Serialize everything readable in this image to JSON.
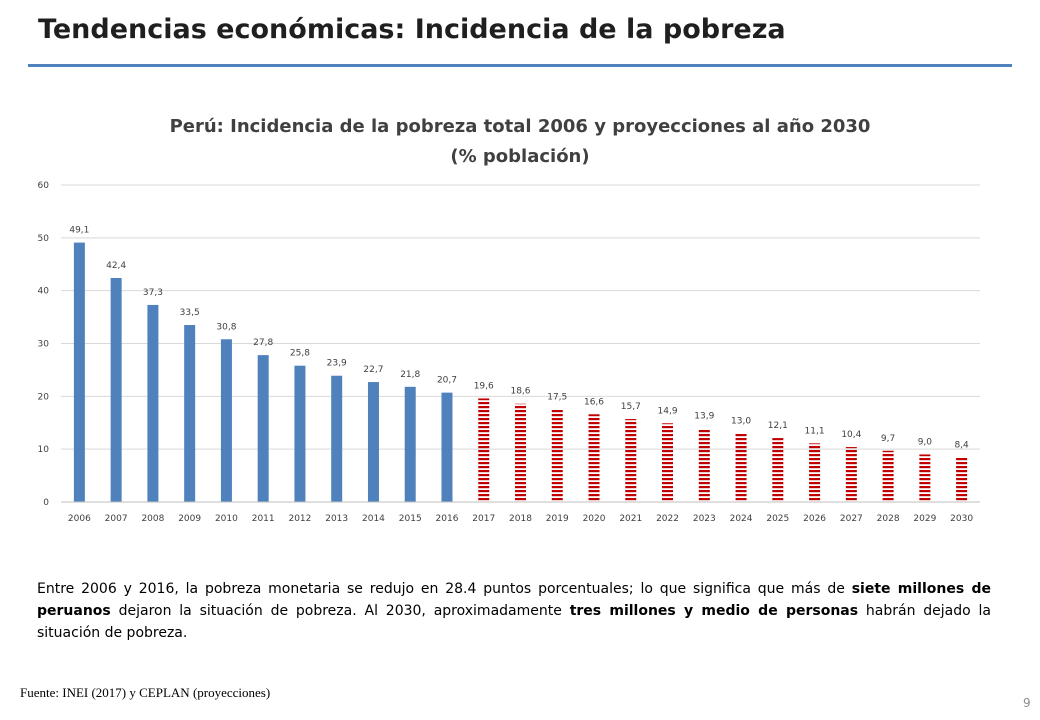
{
  "slide": {
    "title": "Tendencias económicas: Incidencia de la pobreza",
    "page_number": "9"
  },
  "summary": {
    "part1": "Entre 2006 y 2016, la pobreza monetaria se redujo en 28.4 puntos porcentuales; lo que significa que más de ",
    "bold1": "siete millones de peruanos",
    "part2": " dejaron la situación de pobreza. Al 2030, aproximadamente ",
    "bold2": "tres millones y medio de personas",
    "part3": " habrán dejado la situación de pobreza."
  },
  "source": "Fuente: INEI (2017) y CEPLAN (proyecciones)",
  "colors": {
    "historical": "#4f81bd",
    "projection": "#c00000",
    "title_rule": "#4f81bd",
    "grid": "#d9d9d9"
  },
  "chart_data": {
    "type": "bar",
    "title": "Perú: Incidencia de la pobreza total 2006 y proyecciones al año 2030",
    "subtitle": "(% población)",
    "xlabel": "",
    "ylabel": "",
    "ylim": [
      0,
      60
    ],
    "yticks": [
      "0",
      "10",
      "20",
      "30",
      "40",
      "50",
      "60"
    ],
    "grid": true,
    "categories": [
      "2006",
      "2007",
      "2008",
      "2009",
      "2010",
      "2011",
      "2012",
      "2013",
      "2014",
      "2015",
      "2016",
      "2017",
      "2018",
      "2019",
      "2020",
      "2021",
      "2022",
      "2023",
      "2024",
      "2025",
      "2026",
      "2027",
      "2028",
      "2029",
      "2030"
    ],
    "values": [
      49.1,
      42.4,
      37.3,
      33.5,
      30.8,
      27.8,
      25.8,
      23.9,
      22.7,
      21.8,
      20.7,
      19.6,
      18.6,
      17.5,
      16.6,
      15.7,
      14.9,
      13.9,
      13.0,
      12.1,
      11.1,
      10.4,
      9.7,
      9.0,
      8.4
    ],
    "labels": [
      "49,1",
      "42,4",
      "37,3",
      "33,5",
      "30,8",
      "27,8",
      "25,8",
      "23,9",
      "22,7",
      "21,8",
      "20,7",
      "19,6",
      "18,6",
      "17,5",
      "16,6",
      "15,7",
      "14,9",
      "13,9",
      "13,0",
      "12,1",
      "11,1",
      "10,4",
      "9,7",
      "9,0",
      "8,4"
    ],
    "segments": [
      "observado",
      "observado",
      "observado",
      "observado",
      "observado",
      "observado",
      "observado",
      "observado",
      "observado",
      "observado",
      "observado",
      "proyección",
      "proyección",
      "proyección",
      "proyección",
      "proyección",
      "proyección",
      "proyección",
      "proyección",
      "proyección",
      "proyección",
      "proyección",
      "proyección",
      "proyección",
      "proyección"
    ]
  }
}
